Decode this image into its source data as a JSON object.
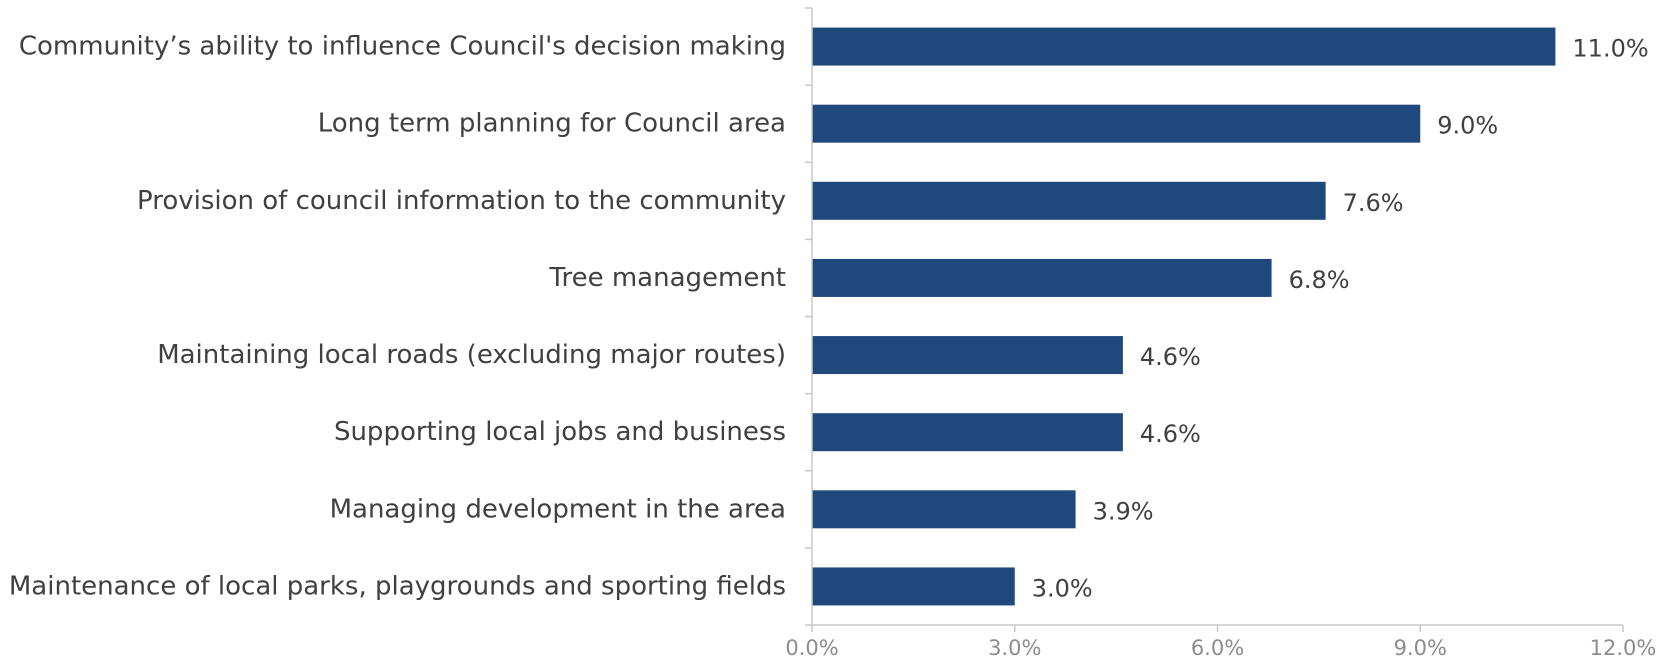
{
  "chart_data": {
    "type": "bar",
    "orientation": "horizontal",
    "categories": [
      "Community’s ability to influence Council's decision making",
      "Long term planning for Council area",
      "Provision of council information to the community",
      "Tree management",
      "Maintaining local roads (excluding major routes)",
      "Supporting local jobs and business",
      "Managing development in the area",
      "Maintenance of local parks, playgrounds and sporting fields"
    ],
    "values": [
      11.0,
      9.0,
      7.6,
      6.8,
      4.6,
      4.6,
      3.9,
      3.0
    ],
    "value_labels": [
      "11.0%",
      "9.0%",
      "7.6%",
      "6.8%",
      "4.6%",
      "4.6%",
      "3.9%",
      "3.0%"
    ],
    "xlim": [
      0,
      12
    ],
    "x_ticks": [
      0,
      3,
      6,
      9,
      12
    ],
    "x_tick_labels": [
      "0.0%",
      "3.0%",
      "6.0%",
      "9.0%",
      "12.0%"
    ],
    "title": "",
    "xlabel": "",
    "ylabel": "",
    "grid": false,
    "bar_color": "#1f497d"
  }
}
